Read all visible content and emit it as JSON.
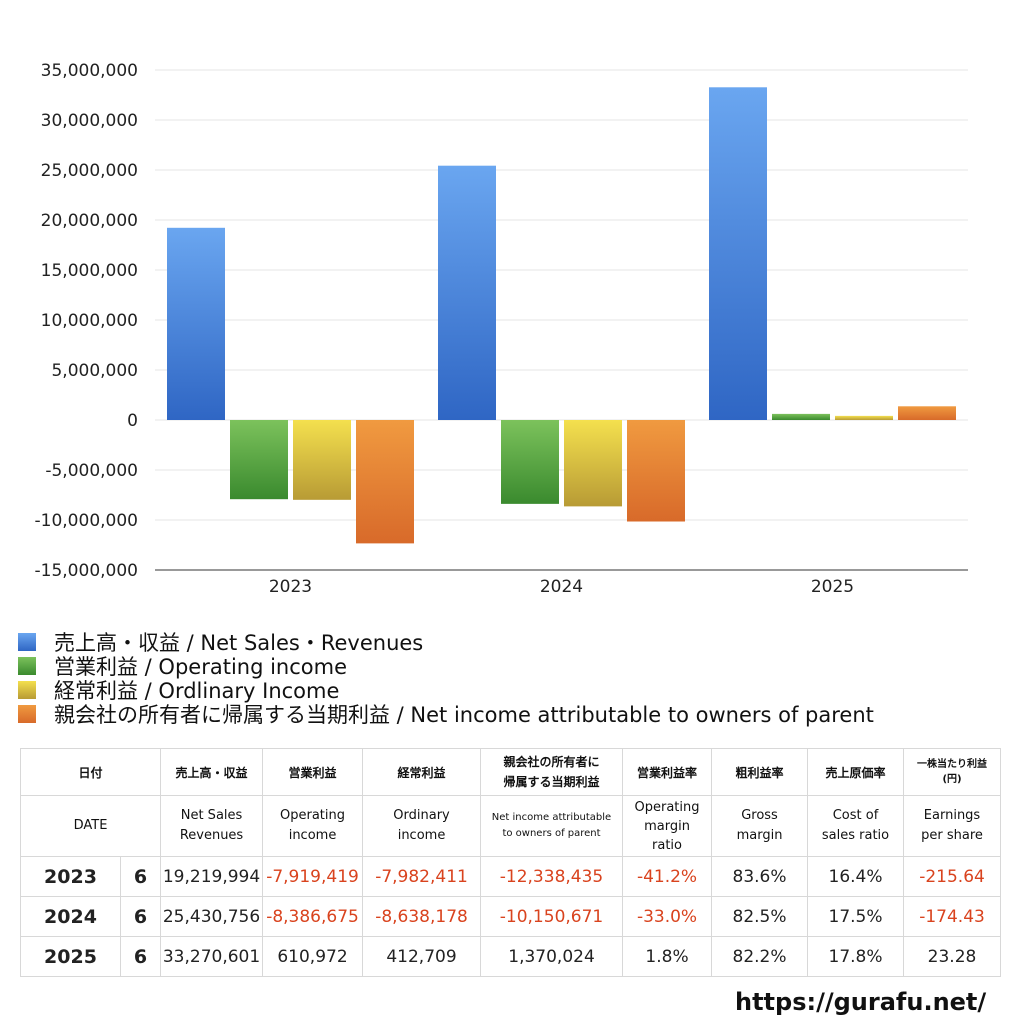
{
  "chart_data": {
    "type": "bar",
    "categories": [
      "2023",
      "2024",
      "2025"
    ],
    "ylim": [
      -15000000,
      35000000
    ],
    "yticks": [
      35000000,
      30000000,
      25000000,
      20000000,
      15000000,
      10000000,
      5000000,
      0,
      -5000000,
      -10000000,
      -15000000
    ],
    "ytick_labels": [
      "35,000,000",
      "30,000,000",
      "25,000,000",
      "20,000,000",
      "15,000,000",
      "10,000,000",
      "5,000,000",
      "0",
      "-5,000,000",
      "-10,000,000",
      "-15,000,000"
    ],
    "grid": true,
    "series": [
      {
        "name": "売上高・収益 / Net Sales・Revenues",
        "color": "#4a86e0",
        "values": [
          19219994,
          25430756,
          33270601
        ]
      },
      {
        "name": "営業利益 / Operating income",
        "color": "#5aa83f",
        "values": [
          -7919419,
          -8386675,
          610972
        ]
      },
      {
        "name": "経常利益 / Ordlinary Income",
        "color": "#e3c83a",
        "values": [
          -7982411,
          -8638178,
          412709
        ]
      },
      {
        "name": "親会社の所有者に帰属する当期利益 / Net income attributable to owners of parent",
        "color": "#e0782f",
        "values": [
          -12338435,
          -10150671,
          1370024
        ]
      }
    ]
  },
  "table": {
    "header_ja": {
      "date": "日付",
      "sales": "売上高・収益",
      "op": "営業利益",
      "ord": "経常利益",
      "net_line1": "親会社の所有者に",
      "net_line2": "帰属する当期利益",
      "opm": "営業利益率",
      "gm": "粗利益率",
      "cos": "売上原価率",
      "eps_line1": "一株当たり利益",
      "eps_line2": "(円)"
    },
    "header_en": {
      "date": "DATE",
      "sales_line1": "Net Sales",
      "sales_line2": "Revenues",
      "op_line1": "Operating",
      "op_line2": "income",
      "ord_line1": "Ordinary",
      "ord_line2": "income",
      "net_line1": "Net income attributable",
      "net_line2": "to owners of parent",
      "opm_line1": "Operating",
      "opm_line2": "margin",
      "opm_line3": "ratio",
      "gm_line1": "Gross",
      "gm_line2": "margin",
      "cos_line1": "Cost of",
      "cos_line2": "sales ratio",
      "eps_line1": "Earnings",
      "eps_line2": "per share"
    },
    "rows": [
      {
        "year": "2023",
        "month": "6",
        "sales": "19,219,994",
        "op": "-7,919,419",
        "ord": "-7,982,411",
        "net": "-12,338,435",
        "opm": "-41.2%",
        "gm": "83.6%",
        "cos": "16.4%",
        "eps": "-215.64"
      },
      {
        "year": "2024",
        "month": "6",
        "sales": "25,430,756",
        "op": "-8,386,675",
        "ord": "-8,638,178",
        "net": "-10,150,671",
        "opm": "-33.0%",
        "gm": "82.5%",
        "cos": "17.5%",
        "eps": "-174.43"
      },
      {
        "year": "2025",
        "month": "6",
        "sales": "33,270,601",
        "op": "610,972",
        "ord": "412,709",
        "net": "1,370,024",
        "opm": "1.8%",
        "gm": "82.2%",
        "cos": "17.8%",
        "eps": "23.28"
      }
    ]
  },
  "site_url": "https://gurafu.net/"
}
